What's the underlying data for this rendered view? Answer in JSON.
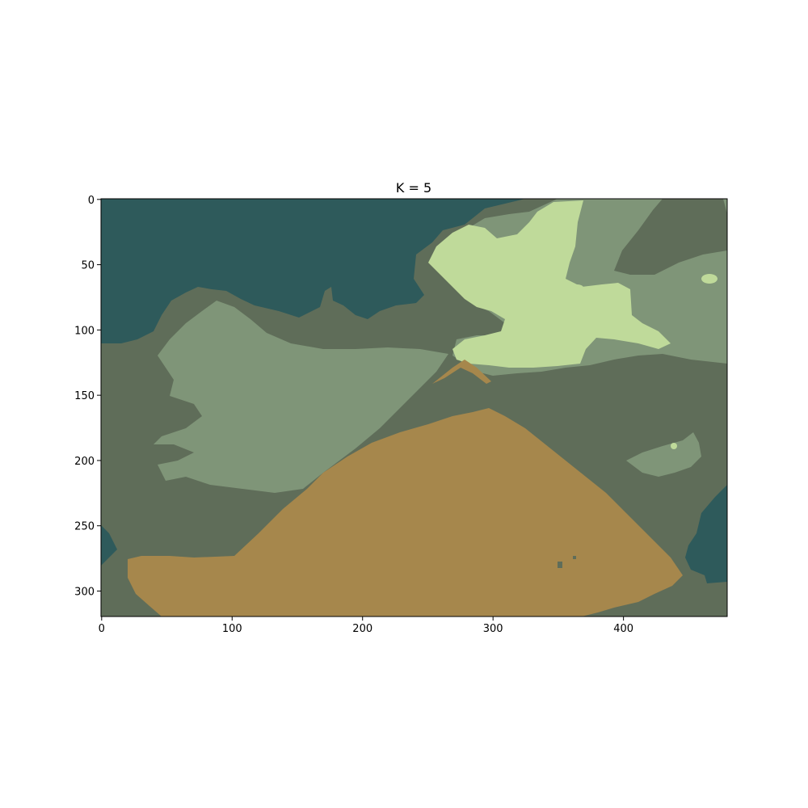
{
  "title": "K = 5",
  "colors": {
    "teal": "#2E5A5B",
    "dark_olive": "#5F6D59",
    "mid_green": "#7F9578",
    "light_green": "#BFDA9A",
    "tan": "#A6874C"
  },
  "image": {
    "width": 480,
    "height": 320
  },
  "x_ticks": [
    "0",
    "100",
    "200",
    "300",
    "400"
  ],
  "y_ticks": [
    "0",
    "50",
    "100",
    "150",
    "200",
    "250",
    "300"
  ]
}
